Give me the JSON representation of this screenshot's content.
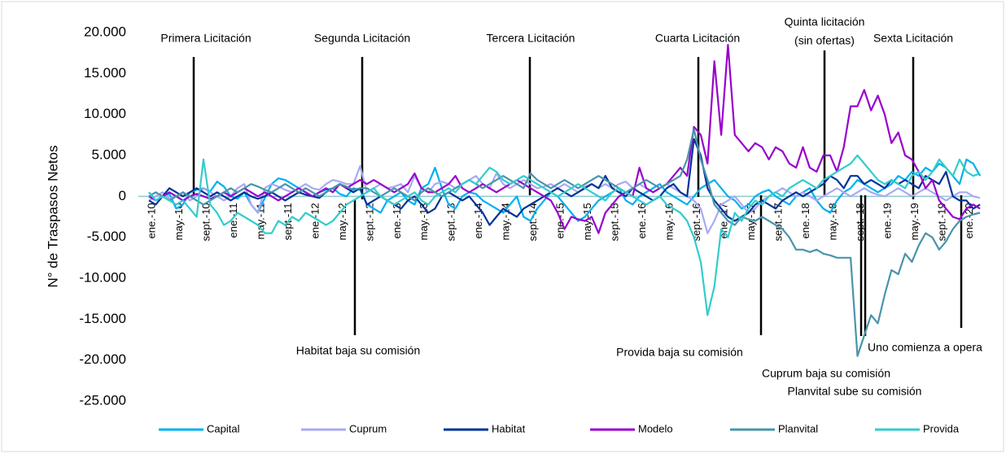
{
  "chart_data": {
    "type": "line",
    "y_label": "N° de Traspasos Netos",
    "ylim": [
      -25000,
      20000
    ],
    "yticks": [
      {
        "value": -25000,
        "label": "-25.000"
      },
      {
        "value": -20000,
        "label": "-20.000"
      },
      {
        "value": -15000,
        "label": "-15.000"
      },
      {
        "value": -10000,
        "label": "-10.000"
      },
      {
        "value": -5000,
        "label": "-5.000"
      },
      0,
      {
        "value": 5000,
        "label": "5.000"
      },
      {
        "value": 10000,
        "label": "10.000"
      },
      {
        "value": 15000,
        "label": "15.000"
      },
      {
        "value": 20000,
        "label": "20.000"
      }
    ],
    "categories": [
      "ene.-10",
      null,
      null,
      null,
      "may.-10",
      null,
      null,
      null,
      "sept.-10",
      null,
      null,
      null,
      "ene.-11",
      null,
      null,
      null,
      "may.-11",
      null,
      null,
      null,
      "sept.-11",
      null,
      null,
      null,
      "ene.-12",
      null,
      null,
      null,
      "may.-12",
      null,
      null,
      null,
      "sept.-12",
      null,
      null,
      null,
      "ene.-13",
      null,
      null,
      null,
      "may.-13",
      null,
      null,
      null,
      "sept.-13",
      null,
      null,
      null,
      "ene.-14",
      null,
      null,
      null,
      "may.-14",
      null,
      null,
      null,
      "sept.-14",
      null,
      null,
      null,
      "ene.-15",
      null,
      null,
      null,
      "may.-15",
      null,
      null,
      null,
      "sept.-15",
      null,
      null,
      null,
      "ene.-16",
      null,
      null,
      null,
      "may.-16",
      null,
      null,
      null,
      "sept.-16",
      null,
      null,
      null,
      "ene.-17",
      null,
      null,
      null,
      "may.-17",
      null,
      null,
      null,
      "sept.-17",
      null,
      null,
      null,
      "ene.-18",
      null,
      null,
      null,
      "may.-18",
      null,
      null,
      null,
      "sept.-18",
      null,
      null,
      null,
      "ene.-19",
      null,
      null,
      null,
      "may.-19",
      null,
      null,
      null,
      "sept.-19",
      null,
      null,
      null,
      "ene.-20",
      null,
      null
    ],
    "series": [
      {
        "name": "Capital",
        "color": "#00b0f0",
        "values": [
          500,
          -500,
          0,
          300,
          -1500,
          -1000,
          500,
          800,
          1000,
          600,
          1800,
          1200,
          0,
          -300,
          500,
          -1000,
          -2000,
          -200,
          1500,
          2200,
          2000,
          1500,
          1000,
          500,
          0,
          500,
          800,
          1000,
          300,
          0,
          1000,
          800,
          -1000,
          -1500,
          -2000,
          -500,
          0,
          500,
          -500,
          -1000,
          1000,
          1500,
          3500,
          1000,
          -1000,
          -1500,
          0,
          500,
          300,
          -500,
          -1000,
          -1500,
          -2000,
          -1000,
          0,
          -2500,
          -3000,
          -1500,
          -500,
          500,
          0,
          -1000,
          -2000,
          -3000,
          -2500,
          -1500,
          -500,
          0,
          500,
          1000,
          -500,
          -1000,
          0,
          500,
          1000,
          1500,
          500,
          0,
          -500,
          -1000,
          0,
          1000,
          1500,
          2000,
          1000,
          0,
          -500,
          -1500,
          -1000,
          0,
          500,
          800,
          0,
          -500,
          -1000,
          0,
          500,
          1000,
          -500,
          -1500,
          -2000,
          -500,
          500,
          1000,
          2000,
          1500,
          1000,
          500,
          1000,
          1500,
          2500,
          2000,
          3000,
          2500,
          3500,
          3000,
          4000,
          3500,
          2500,
          1500,
          4500,
          4000,
          2500
        ]
      },
      {
        "name": "Cuprum",
        "color": "#a9a9f5",
        "values": [
          -500,
          0,
          500,
          -300,
          0,
          500,
          -500,
          0,
          1000,
          500,
          0,
          -500,
          0,
          1000,
          1500,
          -1000,
          -2000,
          1000,
          1500,
          1200,
          800,
          500,
          1000,
          1500,
          1000,
          800,
          1500,
          2000,
          1800,
          1500,
          1500,
          3700,
          500,
          1000,
          1500,
          1000,
          1200,
          1500,
          500,
          2500,
          1000,
          500,
          1500,
          1800,
          1500,
          1000,
          1500,
          2000,
          2500,
          1500,
          1000,
          2800,
          1500,
          1000,
          1500,
          2000,
          1500,
          1000,
          1200,
          1500,
          1000,
          1500,
          1000,
          500,
          1200,
          1500,
          1000,
          1500,
          1000,
          1500,
          1800,
          1000,
          1500,
          1000,
          500,
          1000,
          1500,
          1000,
          500,
          0,
          -500,
          -1500,
          -4500,
          -3000,
          -1000,
          -500,
          0,
          -1000,
          -2000,
          -1500,
          -500,
          0,
          500,
          1000,
          500,
          0,
          500,
          0,
          -500,
          0,
          500,
          1000,
          500,
          0,
          500,
          1000,
          500,
          200,
          0,
          500,
          1000,
          500,
          0,
          500,
          1000,
          500,
          0,
          -500,
          0,
          500,
          500,
          0,
          -200
        ]
      },
      {
        "name": "Habitat",
        "color": "#003399",
        "values": [
          -500,
          -1000,
          0,
          1000,
          500,
          0,
          500,
          1000,
          500,
          0,
          500,
          0,
          -500,
          0,
          500,
          0,
          -300,
          0,
          500,
          0,
          -500,
          0,
          500,
          200,
          0,
          -200,
          500,
          1000,
          1500,
          1000,
          500,
          1000,
          -1000,
          -500,
          0,
          -500,
          -1000,
          -1500,
          -500,
          0,
          -1000,
          -2000,
          -1500,
          0,
          500,
          0,
          -500,
          0,
          -1000,
          -2000,
          -3500,
          -2500,
          -1500,
          -2000,
          -2500,
          -1500,
          -1000,
          -500,
          0,
          500,
          1000,
          500,
          0,
          500,
          1000,
          1500,
          1000,
          2500,
          1000,
          500,
          0,
          1000,
          500,
          0,
          -500,
          0,
          1000,
          1500,
          500,
          0,
          7000,
          5000,
          1000,
          -500,
          -1500,
          -2500,
          -3000,
          -2500,
          -2000,
          -1000,
          -500,
          -1000,
          -1500,
          -500,
          0,
          500,
          0,
          500,
          1000,
          1500,
          2500,
          2000,
          1000,
          2500,
          2500,
          1500,
          2000,
          1500,
          1000,
          2000,
          1500,
          2000,
          1500,
          1000,
          2500,
          2000,
          1500,
          3000,
          0,
          -500,
          -500,
          -1500,
          -1000
        ]
      },
      {
        "name": "Modelo",
        "color": "#9900cc",
        "values": [
          0,
          -500,
          0,
          500,
          0,
          -500,
          0,
          300,
          0,
          -300,
          0,
          500,
          0,
          500,
          1000,
          500,
          0,
          500,
          0,
          -500,
          0,
          500,
          1000,
          500,
          0,
          500,
          1000,
          500,
          1500,
          1000,
          1500,
          2000,
          1500,
          2000,
          1500,
          1000,
          500,
          1000,
          1500,
          2800,
          1000,
          500,
          500,
          1000,
          1500,
          2500,
          1000,
          500,
          1000,
          1500,
          1000,
          500,
          1000,
          1500,
          2000,
          1500,
          1000,
          500,
          0,
          -500,
          -2000,
          -4000,
          -2500,
          -2800,
          -3000,
          -2500,
          -4500,
          -2000,
          -1000,
          0,
          500,
          0,
          3500,
          1000,
          500,
          1000,
          1500,
          2500,
          3500,
          2500,
          8500,
          7500,
          4000,
          16500,
          7500,
          18500,
          7500,
          6500,
          5500,
          6500,
          6000,
          4500,
          6000,
          5500,
          4000,
          3500,
          6000,
          3500,
          3000,
          5000,
          5000,
          3000,
          6000,
          11000,
          11000,
          13000,
          10500,
          12300,
          10000,
          6500,
          7800,
          5000,
          4500,
          3000,
          1000,
          2000,
          -500,
          -1500,
          -2500,
          -2800,
          -1500,
          -1000,
          -1500
        ]
      },
      {
        "name": "Planvital",
        "color": "#4a94ab",
        "values": [
          0,
          500,
          0,
          -500,
          0,
          500,
          0,
          -500,
          -1000,
          -500,
          0,
          500,
          1000,
          500,
          1000,
          1500,
          1200,
          800,
          500,
          1000,
          1500,
          1000,
          500,
          1000,
          500,
          0,
          500,
          1000,
          1500,
          1200,
          800,
          1000,
          1000,
          500,
          0,
          500,
          1000,
          500,
          0,
          -500,
          500,
          1000,
          500,
          0,
          500,
          1000,
          1500,
          2000,
          1500,
          1000,
          1500,
          2000,
          2500,
          2000,
          1500,
          1000,
          2800,
          2000,
          1500,
          1000,
          1500,
          2000,
          1500,
          1000,
          1500,
          2000,
          2500,
          2000,
          1500,
          1000,
          500,
          1000,
          1500,
          2000,
          1500,
          1000,
          1500,
          2000,
          2500,
          4500,
          8200,
          4500,
          2000,
          -1000,
          -2000,
          -3000,
          -3500,
          -2500,
          -2800,
          -3000,
          -2500,
          -3000,
          -3500,
          -4000,
          -5000,
          -6500,
          -6500,
          -6800,
          -6500,
          -7000,
          -7200,
          -7500,
          -7500,
          -7500,
          -19500,
          -17000,
          -14500,
          -15500,
          -12000,
          -9000,
          -9500,
          -7000,
          -8000,
          -6000,
          -4500,
          -5000,
          -6500,
          -5500,
          -4000,
          -3000,
          -2500,
          -2200,
          -2000
        ]
      },
      {
        "name": "Provida",
        "color": "#33cccc",
        "values": [
          500,
          -500,
          0,
          -500,
          -1000,
          -500,
          -1500,
          -2500,
          4500,
          -1000,
          -2000,
          -3500,
          -3000,
          -2000,
          -2500,
          -3000,
          -3500,
          -4500,
          -4500,
          -3000,
          -3500,
          -2500,
          -3000,
          -2000,
          -2500,
          -3000,
          -3500,
          -3000,
          -2000,
          -1000,
          -500,
          0,
          500,
          1000,
          0,
          -500,
          -1000,
          -500,
          0,
          500,
          -500,
          -1000,
          0,
          500,
          1000,
          500,
          1500,
          2000,
          1500,
          2500,
          3500,
          3000,
          2000,
          1500,
          2000,
          2500,
          2000,
          1500,
          1000,
          500,
          0,
          500,
          1000,
          1500,
          1000,
          500,
          0,
          -500,
          500,
          1000,
          500,
          0,
          -500,
          -1000,
          -500,
          0,
          -1000,
          -1500,
          -2000,
          -3000,
          -5000,
          -8000,
          -14500,
          -11000,
          -4000,
          -5000,
          -2000,
          -3000,
          -1500,
          -500,
          -1000,
          0,
          500,
          0,
          1000,
          1500,
          2000,
          1500,
          1000,
          2000,
          2500,
          3000,
          3500,
          4000,
          5000,
          4000,
          3000,
          2000,
          1500,
          2000,
          1500,
          1000,
          2500,
          3000,
          2000,
          3000,
          4500,
          3500,
          2500,
          4500,
          3000,
          2500,
          2800
        ]
      }
    ],
    "annotations": [
      "Primera Licitación",
      "Segunda Licitación",
      "Tercera Licitación",
      "Cuarta Licitación",
      "Quinta licitación",
      "(sin ofertas)",
      "Sexta Licitación",
      "Habitat baja su comisión",
      "Provida baja su comisión",
      "Cuprum baja su comisión",
      "Planvital sube su comisión",
      "Uno comienza a opera"
    ],
    "legend": "bottom"
  }
}
